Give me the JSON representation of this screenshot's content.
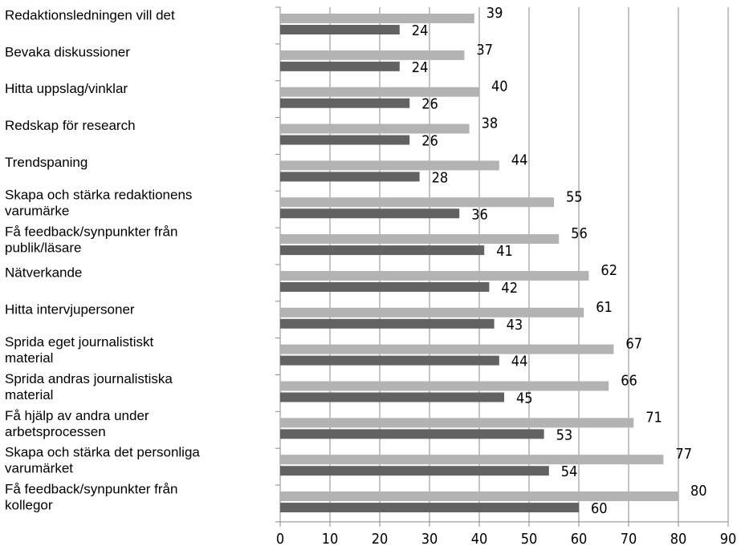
{
  "chart_data": {
    "type": "hbar",
    "categories": [
      [
        "Redaktionsledningen vill det"
      ],
      [
        "Bevaka diskussioner"
      ],
      [
        "Hitta uppslag/vinklar"
      ],
      [
        "Redskap för research"
      ],
      [
        "Trendspaning"
      ],
      [
        "Skapa och stärka redaktionens",
        "varumärke"
      ],
      [
        "Få feedback/synpunkter från",
        "publik/läsare"
      ],
      [
        "Nätverkande"
      ],
      [
        "Hitta intervjupersoner"
      ],
      [
        "Sprida eget journalistiskt",
        "material"
      ],
      [
        "Sprida andras journalistiska",
        "material"
      ],
      [
        "Få hjälp av andra under",
        "arbetsprocessen"
      ],
      [
        "Skapa och stärka det personliga",
        "varumärket"
      ],
      [
        "Få feedback/synpunkter från",
        "kollegor"
      ]
    ],
    "series": [
      {
        "color": "#b3b3b3",
        "values": [
          39,
          37,
          40,
          38,
          44,
          55,
          56,
          62,
          61,
          67,
          66,
          71,
          77,
          80
        ]
      },
      {
        "color": "#626262",
        "values": [
          24,
          24,
          26,
          26,
          28,
          36,
          41,
          42,
          43,
          44,
          45,
          53,
          54,
          60
        ]
      }
    ],
    "xlim": [
      0,
      90
    ],
    "xticks": [
      0,
      10,
      20,
      30,
      40,
      50,
      60,
      70,
      80,
      90
    ],
    "grid": true
  }
}
